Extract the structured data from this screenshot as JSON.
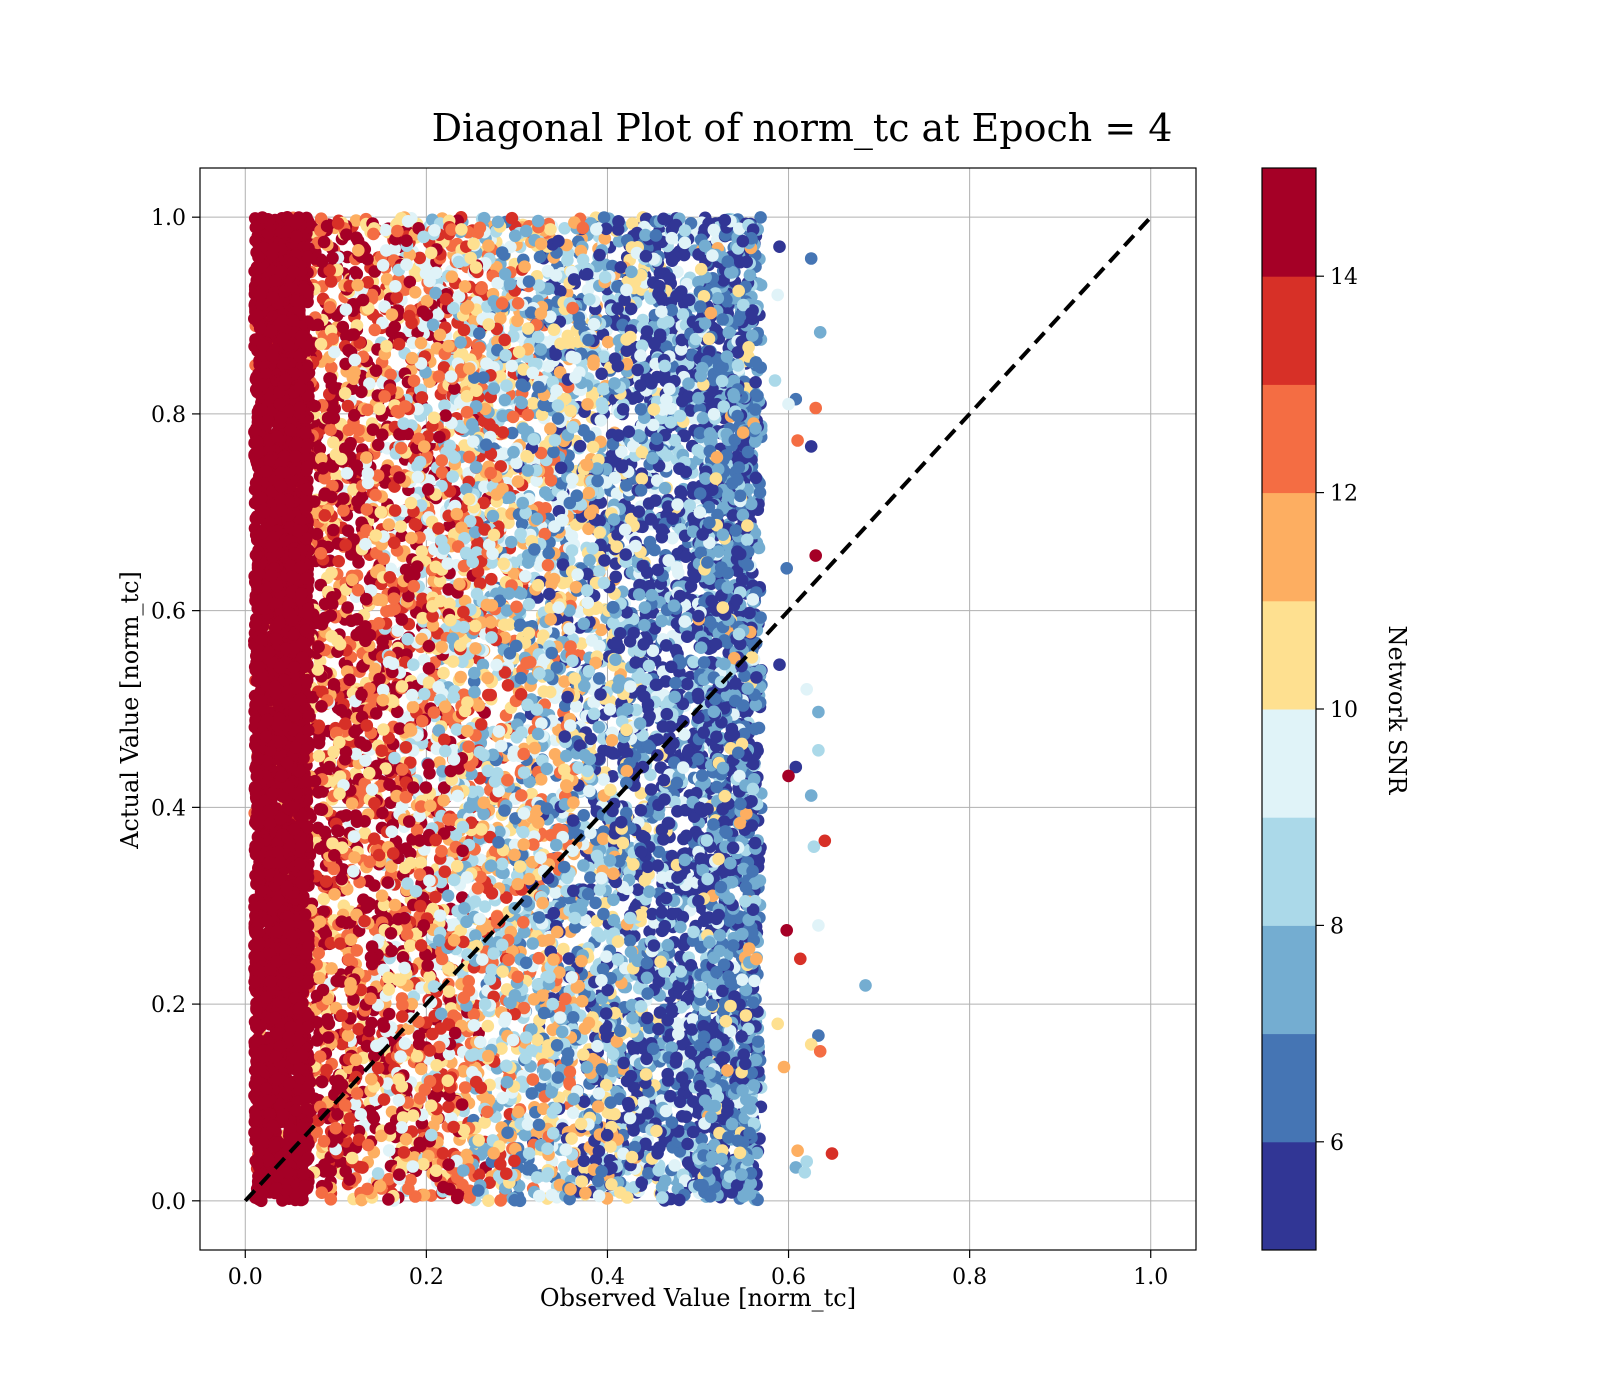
{
  "chart_data": {
    "type": "scatter",
    "title": "Diagonal Plot of norm_tc at Epoch = 4",
    "xlabel": "Observed Value [norm_tc]",
    "ylabel": "Actual Value [norm_tc]",
    "xlim": [
      -0.05,
      1.05
    ],
    "ylim": [
      -0.05,
      1.05
    ],
    "x_ticks": [
      "0.0",
      "0.2",
      "0.4",
      "0.6",
      "0.8",
      "1.0"
    ],
    "y_ticks": [
      "0.0",
      "0.2",
      "0.4",
      "0.6",
      "0.8",
      "1.0"
    ],
    "grid": true,
    "reference_line": {
      "style": "dashed",
      "color": "#000000",
      "from": [
        0,
        0
      ],
      "to": [
        1,
        1
      ]
    },
    "colorbar": {
      "label": "Network SNR",
      "range": [
        5,
        15
      ],
      "ticks": [
        "6",
        "8",
        "10",
        "12",
        "14"
      ],
      "colors": [
        "#313695",
        "#4575b4",
        "#74add1",
        "#abd9e9",
        "#e0f3f8",
        "#fee090",
        "#fdae61",
        "#f46d43",
        "#d73027",
        "#a50026"
      ]
    },
    "point_cloud": {
      "description_x_range": [
        0.01,
        0.57
      ],
      "description_y_range": [
        0.0,
        1.0
      ],
      "dense_band_x": [
        0.01,
        0.07
      ],
      "dense_band_color": "#a50026"
    },
    "outliers": [
      {
        "x": 0.625,
        "y": 0.958,
        "snr": 6.5
      },
      {
        "x": 0.635,
        "y": 0.883,
        "snr": 7.6
      },
      {
        "x": 0.608,
        "y": 0.815,
        "snr": 6.2
      },
      {
        "x": 0.63,
        "y": 0.806,
        "snr": 12.4
      },
      {
        "x": 0.625,
        "y": 0.767,
        "snr": 5.4
      },
      {
        "x": 0.61,
        "y": 0.773,
        "snr": 12.6
      },
      {
        "x": 0.63,
        "y": 0.656,
        "snr": 14.5
      },
      {
        "x": 0.598,
        "y": 0.643,
        "snr": 6.0
      },
      {
        "x": 0.59,
        "y": 0.97,
        "snr": 5.8
      },
      {
        "x": 0.59,
        "y": 0.545,
        "snr": 5.6
      },
      {
        "x": 0.62,
        "y": 0.52,
        "snr": 9.8
      },
      {
        "x": 0.633,
        "y": 0.497,
        "snr": 7.6
      },
      {
        "x": 0.633,
        "y": 0.458,
        "snr": 8.4
      },
      {
        "x": 0.608,
        "y": 0.441,
        "snr": 5.5
      },
      {
        "x": 0.6,
        "y": 0.432,
        "snr": 14.5
      },
      {
        "x": 0.625,
        "y": 0.412,
        "snr": 7.6
      },
      {
        "x": 0.64,
        "y": 0.366,
        "snr": 13.5
      },
      {
        "x": 0.628,
        "y": 0.36,
        "snr": 8.6
      },
      {
        "x": 0.633,
        "y": 0.28,
        "snr": 9.6
      },
      {
        "x": 0.598,
        "y": 0.275,
        "snr": 14.5
      },
      {
        "x": 0.613,
        "y": 0.246,
        "snr": 13.5
      },
      {
        "x": 0.685,
        "y": 0.219,
        "snr": 7.6
      },
      {
        "x": 0.588,
        "y": 0.18,
        "snr": 10.6
      },
      {
        "x": 0.633,
        "y": 0.168,
        "snr": 6.5
      },
      {
        "x": 0.625,
        "y": 0.159,
        "snr": 10.6
      },
      {
        "x": 0.635,
        "y": 0.152,
        "snr": 12.6
      },
      {
        "x": 0.595,
        "y": 0.136,
        "snr": 11.6
      },
      {
        "x": 0.61,
        "y": 0.051,
        "snr": 11.6
      },
      {
        "x": 0.648,
        "y": 0.048,
        "snr": 13.5
      },
      {
        "x": 0.62,
        "y": 0.04,
        "snr": 8.4
      },
      {
        "x": 0.608,
        "y": 0.034,
        "snr": 7.6
      },
      {
        "x": 0.618,
        "y": 0.029,
        "snr": 8.6
      },
      {
        "x": 0.6,
        "y": 0.81,
        "snr": 9.6
      },
      {
        "x": 0.585,
        "y": 0.834,
        "snr": 8.6
      },
      {
        "x": 0.588,
        "y": 0.921,
        "snr": 9.6
      }
    ]
  }
}
